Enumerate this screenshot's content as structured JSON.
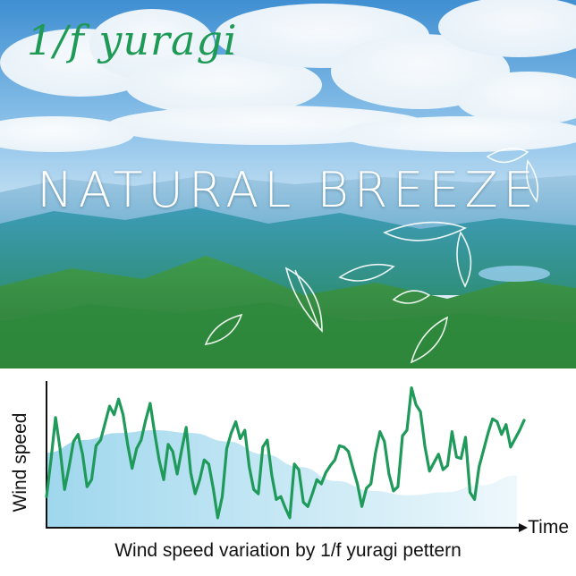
{
  "logo": {
    "text": "1/f yuragi"
  },
  "headline": "NATURAL BREEZE",
  "chart": {
    "ylabel": "Wind speed",
    "xlabel": "Time",
    "caption": "Wind speed variation by 1/f yuragi pettern"
  },
  "colors": {
    "line": "#1f9a5a",
    "trend_fill": "#8ed0ea",
    "logo": "#1f9a56"
  },
  "chart_data": {
    "type": "line",
    "title": "",
    "xlabel": "Time",
    "ylabel": "Wind speed",
    "ylim": [
      0,
      100
    ],
    "grid": false,
    "series": [
      {
        "values": [
          22,
          48,
          78,
          56,
          27,
          43,
          61,
          66,
          52,
          29,
          34,
          58,
          62,
          74,
          86,
          80,
          91,
          80,
          59,
          42,
          56,
          62,
          76,
          88,
          67,
          48,
          34,
          59,
          54,
          38,
          55,
          71,
          39,
          24,
          34,
          48,
          45,
          28,
          7,
          22,
          56,
          67,
          75,
          63,
          69,
          43,
          27,
          24,
          57,
          62,
          37,
          20,
          22,
          14,
          7,
          45,
          41,
          18,
          15,
          24,
          34,
          31,
          39,
          44,
          48,
          58,
          57,
          54,
          42,
          31,
          15,
          28,
          31,
          53,
          68,
          61,
          38,
          26,
          29,
          65,
          69,
          99,
          87,
          82,
          57,
          40,
          46,
          52,
          41,
          44,
          68,
          50,
          49,
          64,
          25,
          20,
          43,
          55,
          67,
          77,
          75,
          66,
          73,
          57,
          63,
          69,
          76
        ]
      }
    ],
    "trend": [
      53,
      62,
      67,
      69,
      67,
      61,
      52,
      43,
      33,
      26,
      23,
      25,
      30,
      37
    ]
  }
}
